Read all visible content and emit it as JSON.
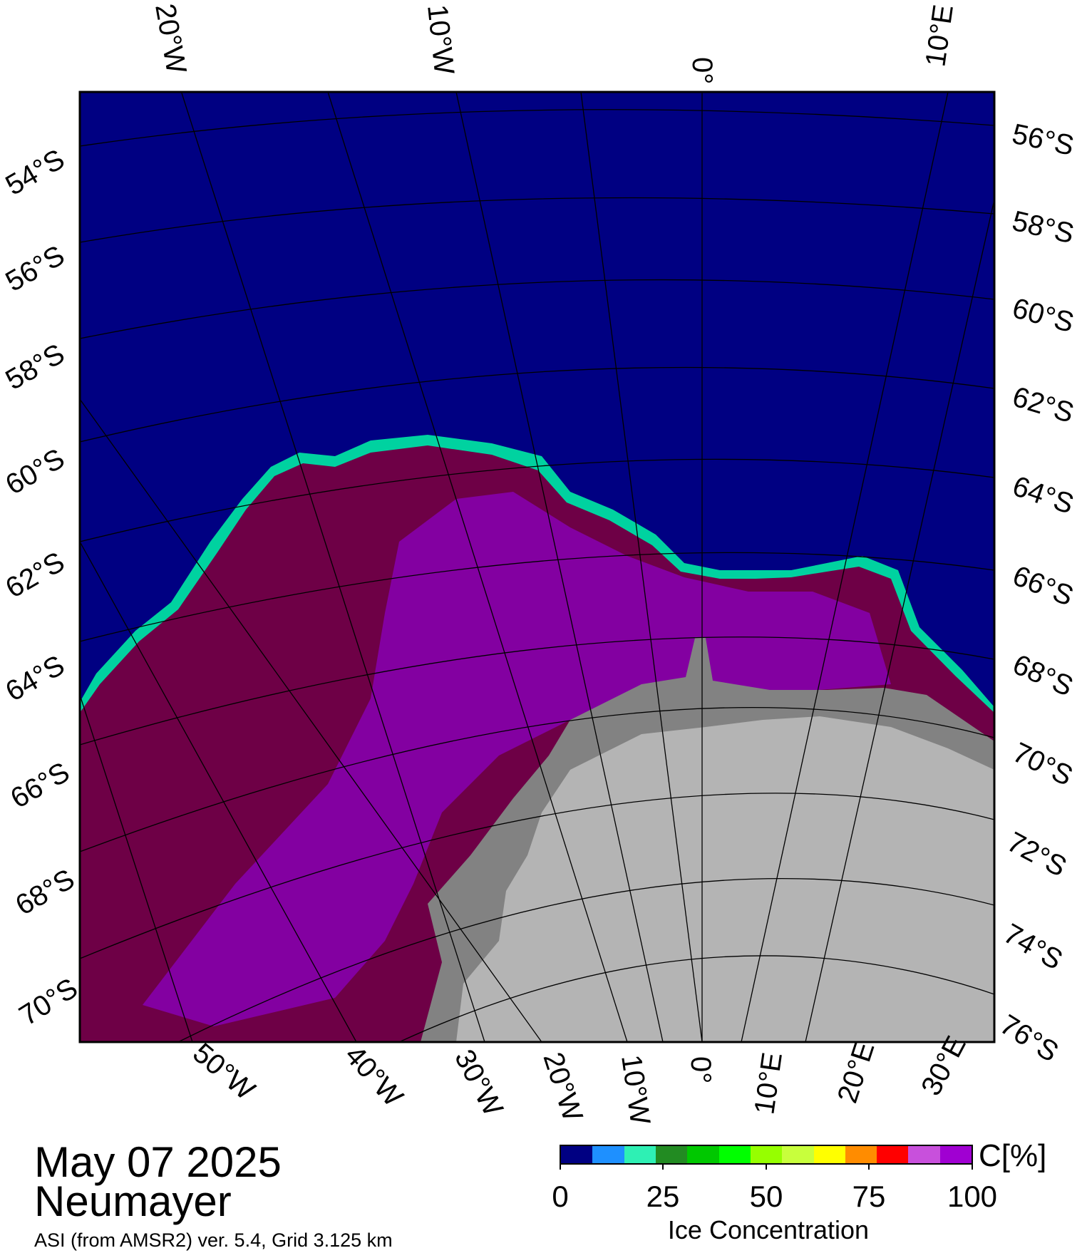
{
  "map": {
    "top_lon_labels": [
      "20°W",
      "10°W",
      "0°",
      "10°E"
    ],
    "right_lat_labels": [
      "56°S",
      "58°S",
      "60°S",
      "62°S",
      "64°S",
      "66°S",
      "68°S",
      "70°S",
      "72°S",
      "74°S",
      "76°S"
    ],
    "left_lat_labels": [
      "54°S",
      "56°S",
      "58°S",
      "60°S",
      "62°S",
      "64°S",
      "66°S",
      "68°S",
      "70°S"
    ],
    "bottom_lon_labels": [
      "50°W",
      "40°W",
      "30°W",
      "20°W",
      "10°W",
      "0°",
      "10°E",
      "20°E",
      "30°E"
    ],
    "colors": {
      "open_ocean": "#000082",
      "sea_ice_full": "#6e0046",
      "land_ice": "#b4b4b4",
      "ice_shelf": "#828282",
      "grid_lines": "#000000"
    }
  },
  "info": {
    "date": "May 07 2025",
    "station": "Neumayer",
    "product": "ASI (from AMSR2) ver. 5.4,  Grid 3.125 km"
  },
  "colorbar": {
    "unit": "C[%]",
    "title": "Ice Concentration",
    "tick_labels": [
      "0",
      "25",
      "50",
      "75",
      "100"
    ],
    "colors": [
      "#000082",
      "#1e90ff",
      "#2ef0b4",
      "#228b22",
      "#00c800",
      "#00ff00",
      "#96ff00",
      "#c8ff3c",
      "#ffff00",
      "#ff8c00",
      "#ff0000",
      "#c850dc",
      "#a000d2"
    ]
  }
}
